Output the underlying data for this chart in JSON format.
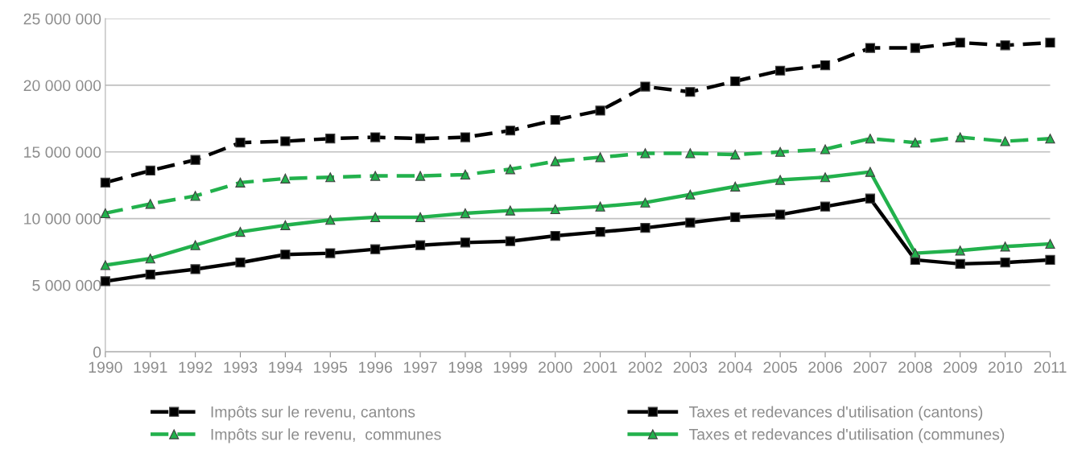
{
  "chart_data": {
    "type": "line",
    "categories": [
      "1990",
      "1991",
      "1992",
      "1993",
      "1994",
      "1995",
      "1996",
      "1997",
      "1998",
      "1999",
      "2000",
      "2001",
      "2002",
      "2003",
      "2004",
      "2005",
      "2006",
      "2007",
      "2008",
      "2009",
      "2010",
      "2011"
    ],
    "series": [
      {
        "name": "Impôts sur le revenu, cantons",
        "color": "#000000",
        "line_style": "dashed",
        "marker": "square",
        "values": [
          12700000,
          13600000,
          14400000,
          15700000,
          15800000,
          16000000,
          16100000,
          16000000,
          16100000,
          16600000,
          17400000,
          18100000,
          19900000,
          19500000,
          20300000,
          21100000,
          21500000,
          22800000,
          22800000,
          23200000,
          23000000,
          23200000
        ]
      },
      {
        "name": "Taxes et redevances d'utilisation (cantons)",
        "color": "#000000",
        "line_style": "solid",
        "marker": "square",
        "values": [
          5300000,
          5800000,
          6200000,
          6700000,
          7300000,
          7400000,
          7700000,
          8000000,
          8200000,
          8300000,
          8700000,
          9000000,
          9300000,
          9700000,
          10100000,
          10300000,
          10900000,
          11500000,
          6900000,
          6600000,
          6700000,
          6900000
        ]
      },
      {
        "name": "Impôts sur le revenu,  communes",
        "color": "#22b14c",
        "line_style": "dashed",
        "marker": "triangle",
        "values": [
          10400000,
          11100000,
          11700000,
          12700000,
          13000000,
          13100000,
          13200000,
          13200000,
          13300000,
          13700000,
          14300000,
          14600000,
          14900000,
          14900000,
          14800000,
          15000000,
          15200000,
          16000000,
          15700000,
          16100000,
          15800000,
          16000000
        ]
      },
      {
        "name": "Taxes et redevances d'utilisation (communes)",
        "color": "#22b14c",
        "line_style": "solid",
        "marker": "triangle",
        "values": [
          6500000,
          7000000,
          8000000,
          9000000,
          9500000,
          9900000,
          10100000,
          10100000,
          10400000,
          10600000,
          10700000,
          10900000,
          11200000,
          11800000,
          12400000,
          12900000,
          13100000,
          13500000,
          7400000,
          7600000,
          7900000,
          8100000
        ]
      }
    ],
    "ylim": [
      0,
      25000000
    ],
    "yticks": [
      {
        "value": 0,
        "label": "0"
      },
      {
        "value": 5000000,
        "label": "5 000 000"
      },
      {
        "value": 10000000,
        "label": "10 000 000"
      },
      {
        "value": 15000000,
        "label": "15 000 000"
      },
      {
        "value": 20000000,
        "label": "20 000 000"
      },
      {
        "value": 25000000,
        "label": "25 000 000"
      }
    ],
    "grid": "y",
    "legend": "bottom"
  }
}
